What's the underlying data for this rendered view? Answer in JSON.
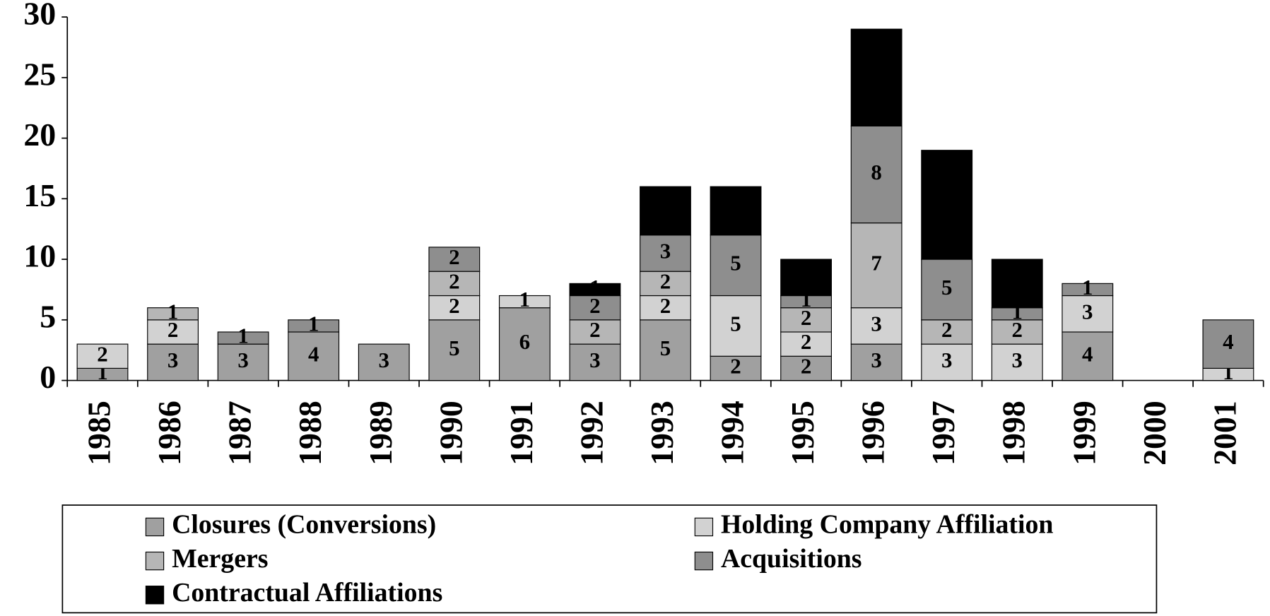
{
  "chart_data": {
    "type": "stacked_bar",
    "categories": [
      "1985",
      "1986",
      "1987",
      "1988",
      "1989",
      "1990",
      "1991",
      "1992",
      "1993",
      "1994",
      "1995",
      "1996",
      "1997",
      "1998",
      "1999",
      "2000",
      "2001"
    ],
    "series": [
      {
        "name": "Closures (Conversions)",
        "color": "#a0a0a0",
        "values": [
          1,
          3,
          3,
          4,
          3,
          5,
          6,
          3,
          5,
          2,
          2,
          3,
          null,
          null,
          4,
          null,
          null
        ]
      },
      {
        "name": "Holding Company Affiliation",
        "color": "#d2d2d2",
        "values": [
          2,
          2,
          null,
          null,
          null,
          2,
          1,
          null,
          2,
          5,
          2,
          3,
          3,
          3,
          3,
          null,
          1
        ]
      },
      {
        "name": "Mergers",
        "color": "#b6b6b6",
        "values": [
          null,
          1,
          null,
          null,
          null,
          2,
          null,
          2,
          2,
          null,
          2,
          7,
          2,
          2,
          null,
          null,
          null
        ]
      },
      {
        "name": "Acquisitions",
        "color": "#8e8e8e",
        "values": [
          null,
          null,
          1,
          1,
          null,
          2,
          null,
          2,
          3,
          5,
          1,
          8,
          5,
          1,
          1,
          null,
          4
        ]
      },
      {
        "name": "Contractual Affiliations",
        "color": "#000000",
        "values": [
          null,
          null,
          null,
          null,
          null,
          null,
          null,
          1,
          4,
          4,
          3,
          8,
          9,
          4,
          null,
          null,
          null
        ]
      }
    ],
    "ylim": [
      0,
      30
    ],
    "yticks": [
      0,
      5,
      10,
      15,
      20,
      25,
      30
    ]
  }
}
